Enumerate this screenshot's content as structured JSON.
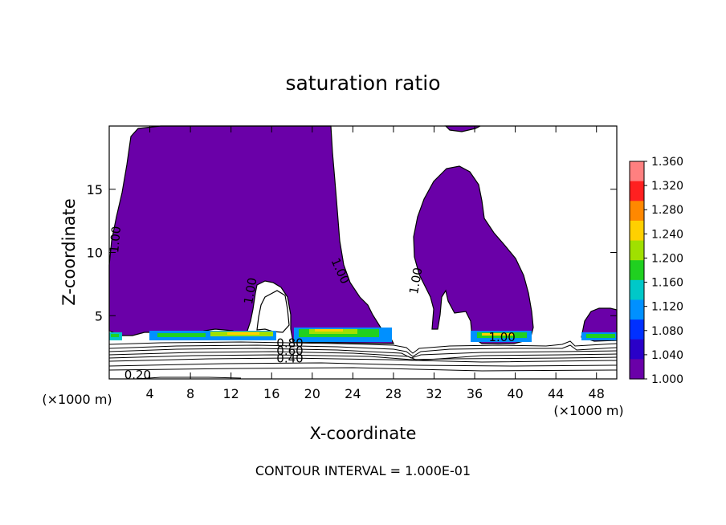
{
  "chart_data": {
    "type": "contour",
    "title": "saturation ratio",
    "xlabel": "X-coordinate",
    "ylabel": "Z-coordinate",
    "x_unit_left": "(×1000 m)",
    "x_unit_right": "(×1000 m)",
    "footer": "CONTOUR INTERVAL = 1.000E-01",
    "xlim": [
      0,
      50
    ],
    "ylim": [
      0,
      20
    ],
    "x_ticks": [
      4,
      8,
      12,
      16,
      20,
      24,
      28,
      32,
      36,
      40,
      44,
      48
    ],
    "y_ticks": [
      5,
      10,
      15
    ],
    "colorbar": {
      "min": 1.0,
      "max": 1.36,
      "labels": [
        "1.360",
        "1.320",
        "1.280",
        "1.240",
        "1.200",
        "1.160",
        "1.120",
        "1.080",
        "1.040",
        "1.000"
      ],
      "colors": [
        "#ff8080",
        "#ff2020",
        "#ff8800",
        "#ffd000",
        "#a0e000",
        "#20d020",
        "#00c8c8",
        "#0090ff",
        "#0030ff",
        "#2a00c8",
        "#6a00a8"
      ]
    },
    "contour_labels": [
      {
        "text": "1.00",
        "x": 1.0,
        "y": 11.0,
        "rotate": -85
      },
      {
        "text": "1.00",
        "x": 14.3,
        "y": 6.9,
        "rotate": -80
      },
      {
        "text": "1.00",
        "x": 22.4,
        "y": 8.4,
        "rotate": 65
      },
      {
        "text": "1.00",
        "x": 30.6,
        "y": 7.7,
        "rotate": -80
      },
      {
        "text": "1.00",
        "x": 38.7,
        "y": 3.0,
        "rotate": 0
      },
      {
        "text": "0.80",
        "x": 17.8,
        "y": 2.5,
        "rotate": 0
      },
      {
        "text": "0.60",
        "x": 17.8,
        "y": 1.9,
        "rotate": 0
      },
      {
        "text": "0.40",
        "x": 17.8,
        "y": 1.3,
        "rotate": 0
      },
      {
        "text": "0.20",
        "x": 2.8,
        "y": 0.0,
        "rotate": 0
      }
    ]
  }
}
